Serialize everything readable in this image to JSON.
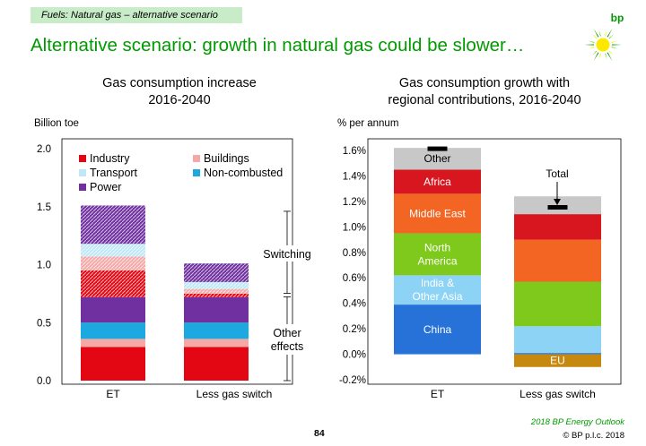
{
  "section_tag": "Fuels: Natural gas – alternative scenario",
  "headline": "Alternative scenario: growth in natural gas could be slower…",
  "logo_text": "bp",
  "footer": {
    "source": "2018 BP Energy Outlook",
    "copyright": "© BP p.l.c. 2018",
    "page_number": "84"
  },
  "colors": {
    "accent_green": "#009a00",
    "industry": "#e30613",
    "buildings": "#f4a9a6",
    "transport": "#bfe7f5",
    "non_combusted": "#1ba9e0",
    "power": "#7030a0",
    "china": "#2672d9",
    "india_other_asia": "#8dd3f5",
    "north_america": "#7ec91b",
    "middle_east": "#f26522",
    "africa": "#d7161f",
    "other": "#c8c8c8",
    "eu": "#c6880e"
  },
  "chart_data": [
    {
      "type": "bar",
      "stacked": true,
      "title": "Gas consumption increase\n2016-2040",
      "ylabel": "Billion toe",
      "ylim": [
        0,
        2.0
      ],
      "yticks": [
        "0.0",
        "0.5",
        "1.0",
        "1.5",
        "2.0"
      ],
      "categories": [
        "ET",
        "Less gas switch"
      ],
      "legend_position": "top-left",
      "series": [
        {
          "name": "Industry",
          "color": "#e30613",
          "values": [
            0.29,
            0.29
          ]
        },
        {
          "name": "Buildings",
          "color": "#f4a9a6",
          "values": [
            0.07,
            0.07
          ]
        },
        {
          "name": "Non-combusted",
          "color": "#1ba9e0",
          "values": [
            0.14,
            0.14
          ]
        },
        {
          "name": "Power",
          "color": "#7030a0",
          "values": [
            0.22,
            0.22
          ]
        },
        {
          "name": "Industry",
          "color": "#e30613",
          "hatched": true,
          "values": [
            0.23,
            0.03
          ]
        },
        {
          "name": "Buildings",
          "color": "#f4a9a6",
          "hatched": true,
          "values": [
            0.12,
            0.04
          ]
        },
        {
          "name": "Transport",
          "color": "#bfe7f5",
          "hatched": true,
          "values": [
            0.11,
            0.06
          ]
        },
        {
          "name": "Power",
          "color": "#7030a0",
          "hatched": true,
          "values": [
            0.33,
            0.16
          ]
        }
      ],
      "legend": [
        "Industry",
        "Buildings",
        "Transport",
        "Non-combusted",
        "Power"
      ],
      "annotations": {
        "switching": "Switching",
        "other_effects_line1": "Other",
        "other_effects_line2": "effects"
      }
    },
    {
      "type": "bar",
      "stacked": true,
      "title": "Gas consumption growth with\nregional contributions, 2016-2040",
      "ylabel": "% per annum",
      "ylim": [
        -0.2,
        1.6
      ],
      "yticks": [
        "-0.2%",
        "0.0%",
        "0.2%",
        "0.4%",
        "0.6%",
        "0.8%",
        "1.0%",
        "1.2%",
        "1.4%",
        "1.6%"
      ],
      "categories": [
        "ET",
        "Less gas switch"
      ],
      "series": [
        {
          "name": "China",
          "color": "#2672d9",
          "values": [
            0.39,
            0.01
          ]
        },
        {
          "name": "India &\nOther Asia",
          "color": "#8dd3f5",
          "values": [
            0.23,
            0.21
          ]
        },
        {
          "name": "North\nAmerica",
          "color": "#7ec91b",
          "values": [
            0.33,
            0.35
          ]
        },
        {
          "name": "Middle East",
          "color": "#f26522",
          "values": [
            0.31,
            0.33
          ]
        },
        {
          "name": "Africa",
          "color": "#d7161f",
          "values": [
            0.19,
            0.2
          ]
        },
        {
          "name": "Other",
          "color": "#c8c8c8",
          "values": [
            0.17,
            0.14
          ]
        },
        {
          "name": "EU",
          "color": "#c6880e",
          "values": [
            0.0,
            -0.1
          ]
        }
      ],
      "total": {
        "label": "Total",
        "values": [
          1.61,
          1.15
        ]
      }
    }
  ]
}
